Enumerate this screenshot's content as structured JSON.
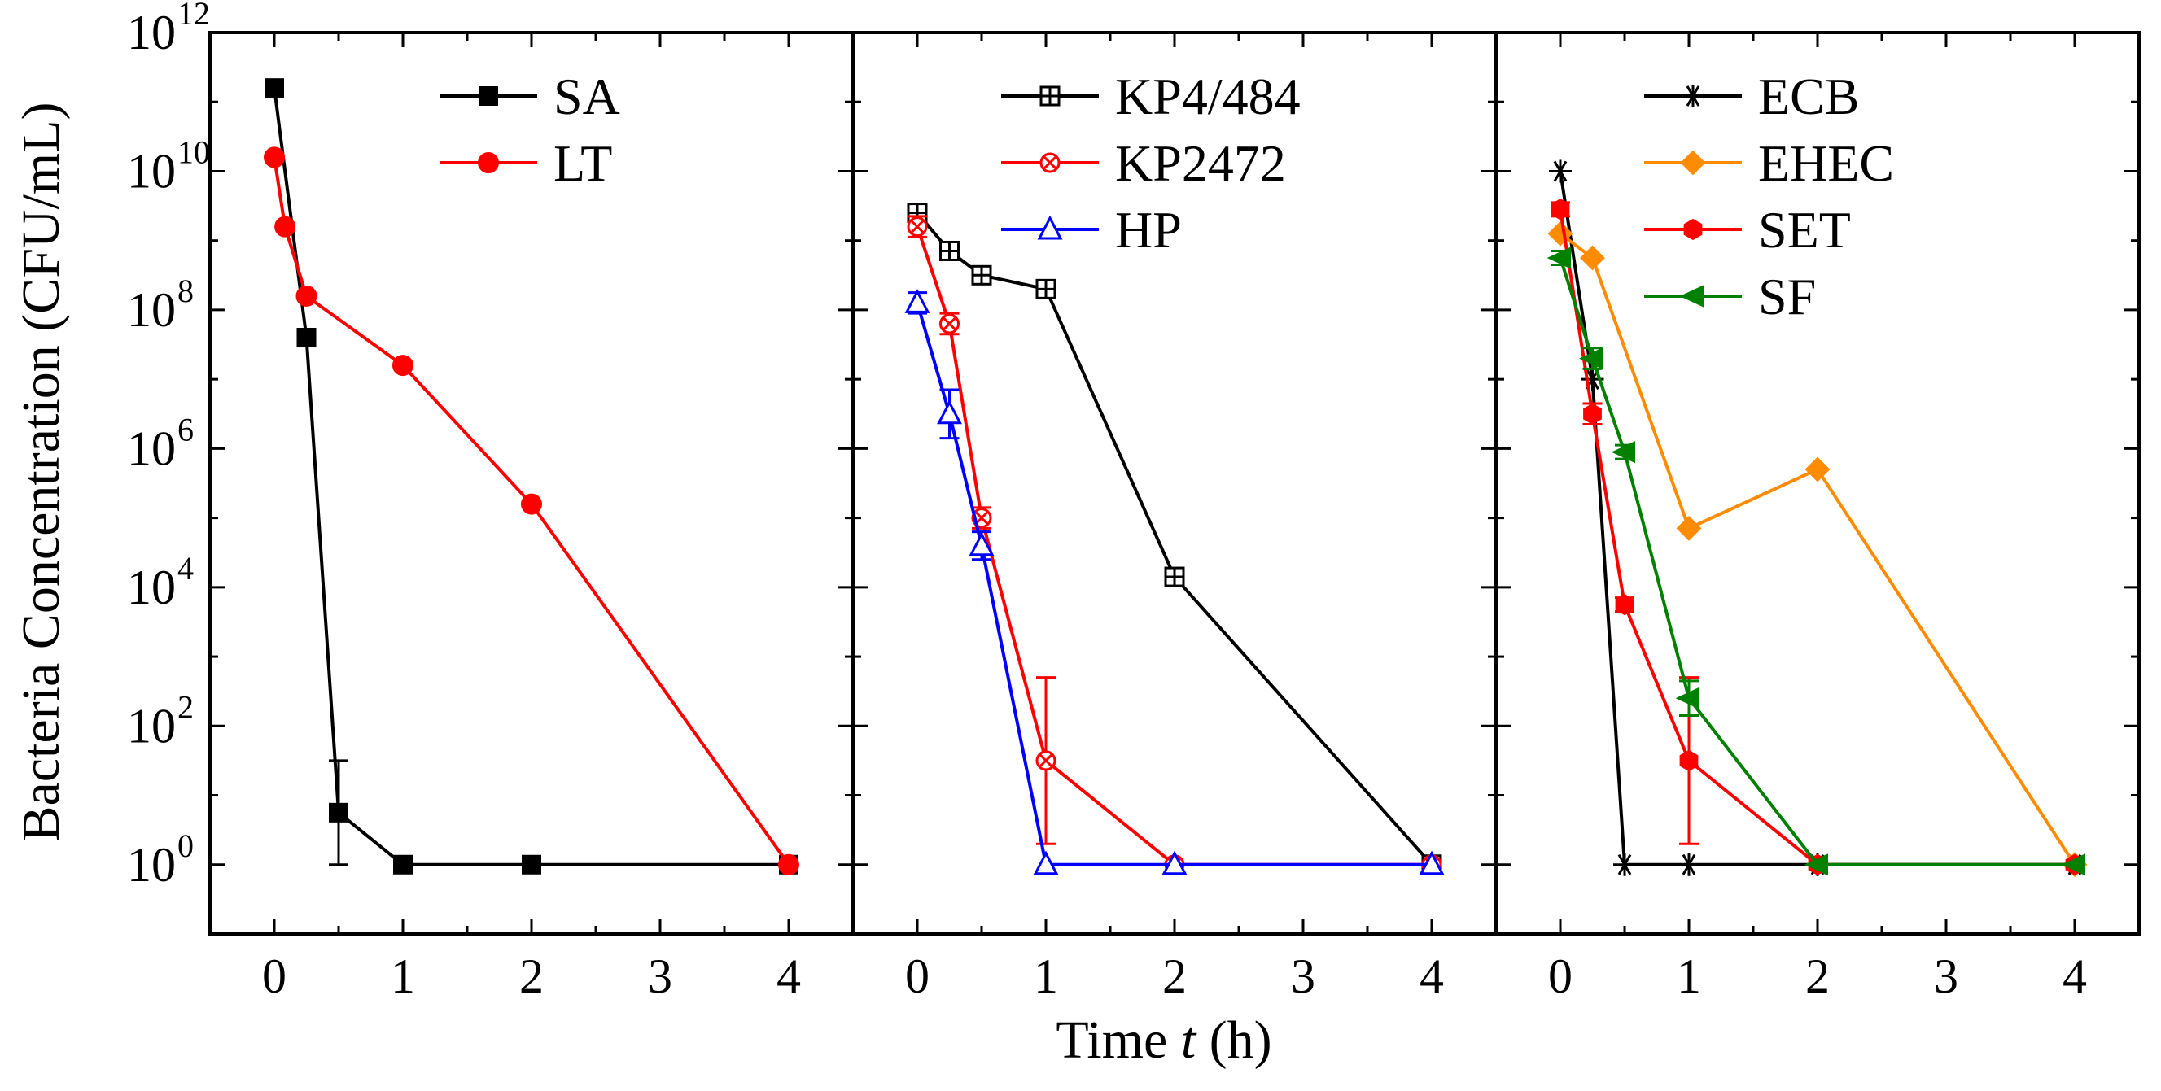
{
  "chart_data": {
    "type": "line",
    "ylabel": "Bacteria Concentration (CFU/mL)",
    "xlabel_prefix": "Time ",
    "xlabel_var": "t",
    "xlabel_suffix": " (h)",
    "yscale": "log10",
    "ylim_exponent": [
      -1,
      12
    ],
    "xlim": [
      -0.5,
      4.5
    ],
    "y_ticks": [
      {
        "base": "10",
        "exp": "0",
        "exponent": 0
      },
      {
        "base": "10",
        "exp": "2",
        "exponent": 2
      },
      {
        "base": "10",
        "exp": "4",
        "exponent": 4
      },
      {
        "base": "10",
        "exp": "6",
        "exponent": 6
      },
      {
        "base": "10",
        "exp": "8",
        "exponent": 8
      },
      {
        "base": "10",
        "exp": "10",
        "exponent": 10
      },
      {
        "base": "10",
        "exp": "12",
        "exponent": 12
      }
    ],
    "x_ticks": [
      {
        "label": "0",
        "value": 0
      },
      {
        "label": "1",
        "value": 1
      },
      {
        "label": "2",
        "value": 2
      },
      {
        "label": "3",
        "value": 3
      },
      {
        "label": "4",
        "value": 4
      }
    ],
    "panels": [
      {
        "name": "panel-1",
        "series": [
          {
            "name": "SA",
            "color": "#000000",
            "marker": "square-filled",
            "x": [
              0,
              0.25,
              0.5,
              1,
              2,
              4
            ],
            "log10_y": [
              11.2,
              7.6,
              0.75,
              0,
              0,
              0
            ],
            "err": [
              0,
              0,
              0.75,
              0,
              0,
              0
            ]
          },
          {
            "name": "LT",
            "color": "#ff0000",
            "marker": "circle-filled",
            "x": [
              0,
              0.083,
              0.25,
              1,
              2,
              4
            ],
            "log10_y": [
              10.2,
              9.2,
              8.2,
              7.2,
              5.2,
              0
            ],
            "err": [
              0,
              0,
              0,
              0,
              0,
              0
            ]
          }
        ]
      },
      {
        "name": "panel-2",
        "series": [
          {
            "name": "KP4/484",
            "color": "#000000",
            "marker": "square-cross-open",
            "x": [
              0,
              0.25,
              0.5,
              1,
              2,
              4
            ],
            "log10_y": [
              9.4,
              8.85,
              8.5,
              8.3,
              4.15,
              0
            ],
            "err": [
              0,
              0,
              0,
              0,
              0,
              0
            ]
          },
          {
            "name": "KP2472",
            "color": "#ff0000",
            "marker": "circle-x-open",
            "x": [
              0,
              0.25,
              0.5,
              1,
              2,
              4
            ],
            "log10_y": [
              9.2,
              7.8,
              5.0,
              1.5,
              0,
              0
            ],
            "err": [
              0.15,
              0.15,
              0.15,
              1.2,
              0,
              0
            ]
          },
          {
            "name": "HP",
            "color": "#0000ff",
            "marker": "triangle-open",
            "x": [
              0,
              0.25,
              0.5,
              1,
              2,
              4
            ],
            "log10_y": [
              8.1,
              6.5,
              4.6,
              0,
              0,
              0
            ],
            "err": [
              0.15,
              0.35,
              0.2,
              0,
              0,
              0
            ]
          }
        ]
      },
      {
        "name": "panel-3",
        "series": [
          {
            "name": "ECB",
            "color": "#000000",
            "marker": "asterisk",
            "x": [
              0,
              0.25,
              0.5,
              1,
              2,
              4
            ],
            "log10_y": [
              10.0,
              7.0,
              0,
              0,
              0,
              0
            ],
            "err": [
              0,
              0,
              0,
              0,
              0,
              0
            ]
          },
          {
            "name": "EHEC",
            "color": "#ff8c00",
            "marker": "diamond-filled",
            "x": [
              0,
              0.25,
              1,
              2,
              4
            ],
            "log10_y": [
              9.1,
              8.75,
              4.85,
              5.7,
              0
            ],
            "err": [
              0,
              0,
              0,
              0,
              0
            ]
          },
          {
            "name": "SET",
            "color": "#ff0000",
            "marker": "hexagon-filled",
            "x": [
              0,
              0.25,
              0.5,
              1,
              2,
              4
            ],
            "log10_y": [
              9.45,
              6.5,
              3.75,
              1.5,
              0,
              0
            ],
            "err": [
              0.1,
              0.15,
              0.1,
              1.2,
              0,
              0
            ]
          },
          {
            "name": "SF",
            "color": "#008000",
            "marker": "triangle-left-filled",
            "x": [
              0,
              0.25,
              0.5,
              1,
              2,
              4
            ],
            "log10_y": [
              8.75,
              7.3,
              5.95,
              2.4,
              0,
              0
            ],
            "err": [
              0.1,
              0.15,
              0.1,
              0.25,
              0,
              0
            ]
          }
        ]
      }
    ]
  }
}
